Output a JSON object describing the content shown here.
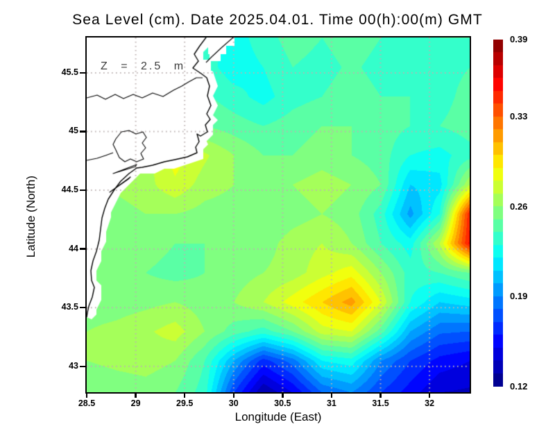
{
  "title": "Sea Level (cm). Date 2025.04.01. Time 00(h):00(m) GMT",
  "annotation": "Z = 2.5 m",
  "axes": {
    "x_label": "Longitude (East)",
    "y_label": "Latitude (North)",
    "x_ticks": [
      {
        "v": 28.5,
        "label": "28.5"
      },
      {
        "v": 29,
        "label": "29"
      },
      {
        "v": 29.5,
        "label": "29.5"
      },
      {
        "v": 30,
        "label": "30"
      },
      {
        "v": 30.5,
        "label": "30.5"
      },
      {
        "v": 31,
        "label": "31"
      },
      {
        "v": 31.5,
        "label": "31.5"
      },
      {
        "v": 32,
        "label": "32"
      }
    ],
    "y_ticks": [
      {
        "v": 45.5,
        "label": "45.5"
      },
      {
        "v": 45,
        "label": "45"
      },
      {
        "v": 44.5,
        "label": "44.5"
      },
      {
        "v": 44,
        "label": "44"
      },
      {
        "v": 43.5,
        "label": "43.5"
      },
      {
        "v": 43,
        "label": "43"
      }
    ]
  },
  "colorbar": {
    "labels": [
      {
        "v": 0.39,
        "label": "0.39"
      },
      {
        "v": 0.33,
        "label": "0.33"
      },
      {
        "v": 0.26,
        "label": "0.26"
      },
      {
        "v": 0.19,
        "label": "0.19"
      },
      {
        "v": 0.12,
        "label": "0.12"
      }
    ],
    "min": 0.12,
    "max": 0.39,
    "bands": 27,
    "colormap": "jet"
  },
  "chart_data": {
    "type": "heatmap",
    "title": "Sea Level (cm). Date 2025.04.01. Time 00(h):00(m) GMT",
    "xlabel": "Longitude (East)",
    "ylabel": "Latitude (North)",
    "xlim": [
      28.5,
      32.41
    ],
    "ylim": [
      42.78,
      45.801
    ],
    "value_range": [
      0.12,
      0.39
    ],
    "colormap": "jet",
    "grid_on": true,
    "grid_lons": [
      28.5,
      28.8,
      29.1,
      29.4,
      29.7,
      30.0,
      30.3,
      30.6,
      30.9,
      31.2,
      31.5,
      31.8,
      32.1,
      32.41
    ],
    "grid_lats": [
      45.8,
      45.55,
      45.3,
      45.05,
      44.8,
      44.55,
      44.3,
      44.05,
      43.8,
      43.55,
      43.3,
      43.05,
      42.78
    ],
    "values": [
      [
        0.24,
        0.24,
        0.24,
        0.24,
        0.235,
        0.225,
        0.235,
        0.245,
        0.24,
        0.246,
        0.24,
        0.236,
        0.24,
        0.24
      ],
      [
        0.24,
        0.24,
        0.24,
        0.24,
        0.235,
        0.224,
        0.23,
        0.24,
        0.236,
        0.242,
        0.236,
        0.24,
        0.236,
        0.24
      ],
      [
        0.25,
        0.25,
        0.25,
        0.25,
        0.242,
        0.234,
        0.226,
        0.236,
        0.24,
        0.246,
        0.24,
        0.24,
        0.236,
        0.244
      ],
      [
        0.255,
        0.255,
        0.255,
        0.255,
        0.25,
        0.245,
        0.24,
        0.245,
        0.25,
        0.25,
        0.245,
        0.24,
        0.24,
        0.245
      ],
      [
        0.26,
        0.262,
        0.266,
        0.285,
        0.272,
        0.26,
        0.25,
        0.25,
        0.255,
        0.25,
        0.245,
        0.23,
        0.226,
        0.236
      ],
      [
        0.26,
        0.262,
        0.266,
        0.278,
        0.265,
        0.26,
        0.255,
        0.26,
        0.265,
        0.26,
        0.25,
        0.21,
        0.216,
        0.27
      ],
      [
        0.256,
        0.256,
        0.26,
        0.26,
        0.256,
        0.255,
        0.25,
        0.255,
        0.26,
        0.255,
        0.235,
        0.196,
        0.23,
        0.35
      ],
      [
        0.25,
        0.252,
        0.255,
        0.25,
        0.25,
        0.25,
        0.255,
        0.265,
        0.27,
        0.26,
        0.24,
        0.225,
        0.27,
        0.354
      ],
      [
        0.25,
        0.25,
        0.25,
        0.246,
        0.25,
        0.255,
        0.26,
        0.265,
        0.276,
        0.286,
        0.26,
        0.235,
        0.24,
        0.25
      ],
      [
        0.255,
        0.255,
        0.257,
        0.26,
        0.255,
        0.26,
        0.27,
        0.285,
        0.3,
        0.315,
        0.28,
        0.23,
        0.21,
        0.215
      ],
      [
        0.26,
        0.263,
        0.268,
        0.275,
        0.26,
        0.245,
        0.235,
        0.25,
        0.275,
        0.28,
        0.245,
        0.2,
        0.182,
        0.18
      ],
      [
        0.26,
        0.263,
        0.265,
        0.26,
        0.24,
        0.2,
        0.165,
        0.185,
        0.22,
        0.226,
        0.19,
        0.17,
        0.156,
        0.15
      ],
      [
        0.25,
        0.253,
        0.255,
        0.25,
        0.235,
        0.17,
        0.13,
        0.15,
        0.18,
        0.19,
        0.17,
        0.155,
        0.14,
        0.138
      ]
    ],
    "land": {
      "coast": [
        [
          172,
          0
        ],
        [
          163,
          12
        ],
        [
          155,
          24
        ],
        [
          161,
          34
        ],
        [
          153,
          44
        ],
        [
          165,
          52
        ],
        [
          173,
          58
        ],
        [
          177,
          70
        ],
        [
          174,
          84
        ],
        [
          179,
          98
        ],
        [
          173,
          110
        ],
        [
          178,
          118
        ],
        [
          171,
          126
        ],
        [
          174,
          136
        ],
        [
          164,
          142
        ],
        [
          159,
          139
        ],
        [
          162,
          150
        ],
        [
          157,
          158
        ],
        [
          159,
          166
        ],
        [
          145,
          172
        ],
        [
          127,
          176
        ],
        [
          112,
          179
        ],
        [
          95,
          184
        ],
        [
          80,
          187
        ],
        [
          72,
          188
        ],
        [
          61,
          196
        ],
        [
          49,
          207
        ],
        [
          40,
          219
        ],
        [
          31,
          233
        ],
        [
          26,
          246
        ],
        [
          22,
          260
        ],
        [
          20,
          276
        ],
        [
          18,
          292
        ],
        [
          14,
          308
        ],
        [
          9,
          322
        ],
        [
          6,
          336
        ],
        [
          7,
          350
        ],
        [
          11,
          360
        ],
        [
          8,
          374
        ],
        [
          3,
          387
        ],
        [
          1,
          396
        ],
        [
          0,
          403
        ]
      ],
      "lake": [
        [
          42,
          146
        ],
        [
          50,
          136
        ],
        [
          61,
          134
        ],
        [
          71,
          139
        ],
        [
          81,
          136
        ],
        [
          86,
          144
        ],
        [
          80,
          152
        ],
        [
          85,
          159
        ],
        [
          78,
          167
        ],
        [
          82,
          175
        ],
        [
          72,
          179
        ],
        [
          63,
          175
        ],
        [
          55,
          179
        ],
        [
          47,
          173
        ],
        [
          42,
          162
        ],
        [
          38,
          154
        ]
      ],
      "spits": [
        [
          [
            72,
            183
          ],
          [
            38,
            196
          ],
          [
            70,
            186
          ]
        ],
        [
          [
            63,
            201
          ],
          [
            33,
            223
          ],
          [
            60,
            204
          ]
        ]
      ],
      "inner_lines": [
        [
          [
            0,
            87
          ],
          [
            15,
            83
          ],
          [
            27,
            89
          ],
          [
            41,
            82
          ],
          [
            53,
            88
          ],
          [
            67,
            82
          ],
          [
            80,
            87
          ],
          [
            95,
            80
          ],
          [
            110,
            85
          ],
          [
            125,
            76
          ],
          [
            137,
            70
          ],
          [
            147,
            64
          ],
          [
            158,
            58
          ],
          [
            167,
            58
          ]
        ],
        [
          [
            0,
            177
          ],
          [
            15,
            174
          ],
          [
            27,
            170
          ],
          [
            38,
            166
          ]
        ]
      ],
      "estuary_spit": [
        [
          211,
          0
        ],
        [
          195,
          14
        ],
        [
          180,
          28
        ],
        [
          172,
          36
        ]
      ],
      "estuary_rects": [
        [
          173,
          0,
          40,
          12
        ],
        [
          175,
          12,
          26,
          12
        ],
        [
          177,
          24,
          16,
          10
        ],
        [
          159,
          32,
          20,
          26
        ]
      ],
      "mask_offset": 10,
      "mask_step": 7
    }
  }
}
